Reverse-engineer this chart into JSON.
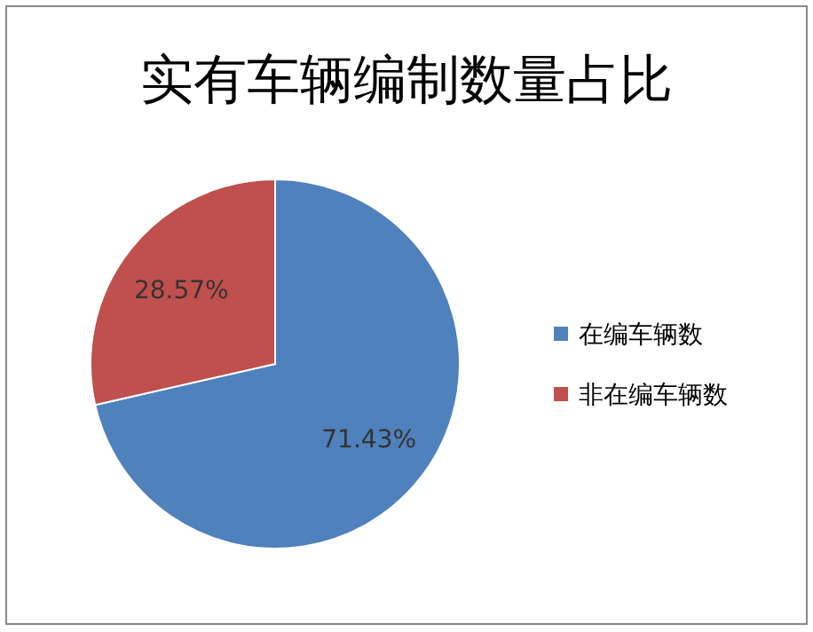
{
  "chart_data": {
    "type": "pie",
    "title": "实有车辆编制数量占比",
    "categories": [
      "在编车辆数",
      "非在编车辆数"
    ],
    "values": [
      71.43,
      28.57
    ],
    "colors": [
      "#4f81bd",
      "#c0504d"
    ],
    "value_labels": [
      "71.43%",
      "28.57%"
    ],
    "legend": "right"
  }
}
